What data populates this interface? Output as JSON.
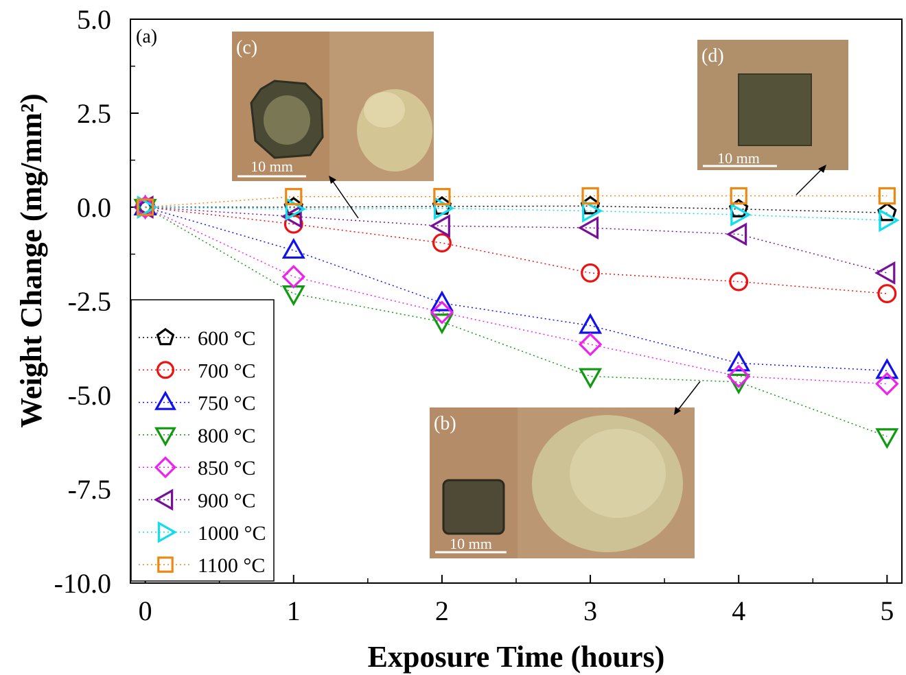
{
  "chart_data": {
    "type": "scatter",
    "title": "",
    "xlabel": "Exposure Time (hours)",
    "ylabel": "Weight Change (mg/mm²)",
    "xlim": [
      -0.1,
      5.1
    ],
    "ylim": [
      -10.0,
      5.0
    ],
    "x": [
      0,
      1,
      2,
      3,
      4,
      5
    ],
    "x_ticks": [
      "0",
      "1",
      "2",
      "3",
      "4",
      "5"
    ],
    "y_ticks": [
      "5.0",
      "2.5",
      "0.0",
      "-2.5",
      "-5.0",
      "-7.5",
      "-10.0"
    ],
    "y_tick_values": [
      5.0,
      2.5,
      0.0,
      -2.5,
      -5.0,
      -7.5,
      -10.0
    ],
    "panel_label": "(a)",
    "legend_position": "lower-left",
    "line_style": "dotted",
    "series": [
      {
        "name": "600 °C",
        "marker": "pentagon",
        "color": "#000000",
        "values": [
          0,
          0.0,
          0.02,
          0.03,
          -0.05,
          -0.15
        ]
      },
      {
        "name": "700 °C",
        "marker": "circle",
        "color": "#ee1111",
        "values": [
          0,
          -0.45,
          -0.95,
          -1.75,
          -1.98,
          -2.3
        ]
      },
      {
        "name": "750 °C",
        "marker": "triangle-up",
        "color": "#1111ee",
        "values": [
          0,
          -1.15,
          -2.55,
          -3.15,
          -4.15,
          -4.35
        ]
      },
      {
        "name": "800 °C",
        "marker": "triangle-down",
        "color": "#119911",
        "values": [
          0,
          -2.3,
          -3.05,
          -4.5,
          -4.65,
          -6.1
        ]
      },
      {
        "name": "850 °C",
        "marker": "diamond",
        "color": "#ee22ee",
        "values": [
          0,
          -1.85,
          -2.8,
          -3.65,
          -4.5,
          -4.7
        ]
      },
      {
        "name": "900 °C",
        "marker": "triangle-left",
        "color": "#771199",
        "values": [
          0,
          -0.25,
          -0.5,
          -0.55,
          -0.72,
          -1.75
        ]
      },
      {
        "name": "1000 °C",
        "marker": "triangle-right",
        "color": "#11ddee",
        "values": [
          0,
          -0.05,
          -0.03,
          -0.1,
          -0.2,
          -0.35
        ]
      },
      {
        "name": "1100 °C",
        "marker": "square",
        "color": "#ee8811",
        "values": [
          0,
          0.28,
          0.28,
          0.3,
          0.3,
          0.3
        ]
      }
    ]
  },
  "insets": {
    "c": {
      "label": "(c)",
      "scale": "10 mm"
    },
    "d": {
      "label": "(d)",
      "scale": "10 mm"
    },
    "b": {
      "label": "(b)",
      "scale": "10 mm"
    }
  }
}
